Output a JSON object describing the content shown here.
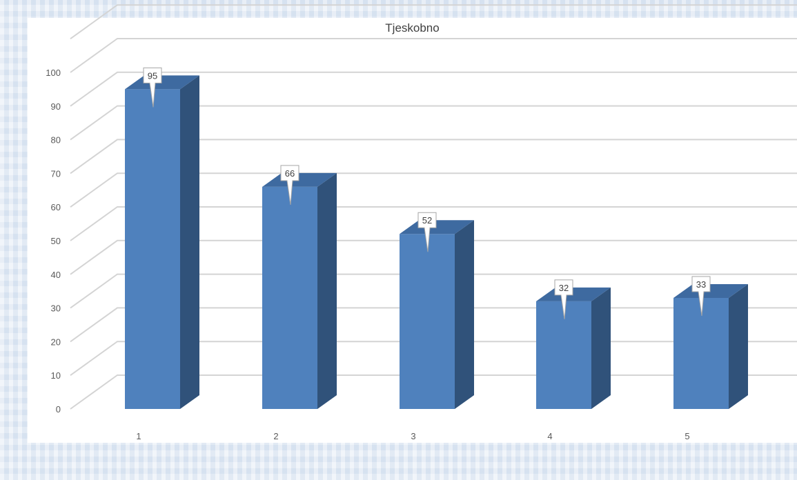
{
  "chart_data": {
    "type": "bar",
    "title": "Tjeskobno",
    "categories": [
      "1",
      "2",
      "3",
      "4",
      "5"
    ],
    "values": [
      95,
      66,
      52,
      32,
      33
    ],
    "data_labels": [
      "95",
      "66",
      "52",
      "32",
      "33"
    ],
    "ylim": [
      0,
      100
    ],
    "yticks": [
      "0",
      "10",
      "20",
      "30",
      "40",
      "50",
      "60",
      "70",
      "80",
      "90",
      "100"
    ],
    "xlabel": "",
    "ylabel": "",
    "grid": true,
    "style": "3d",
    "colors": {
      "bar_front": "#4f81bd",
      "bar_side": "#30527a",
      "bar_top": "#3e6aa0",
      "grid": "#d4d4d4"
    }
  }
}
